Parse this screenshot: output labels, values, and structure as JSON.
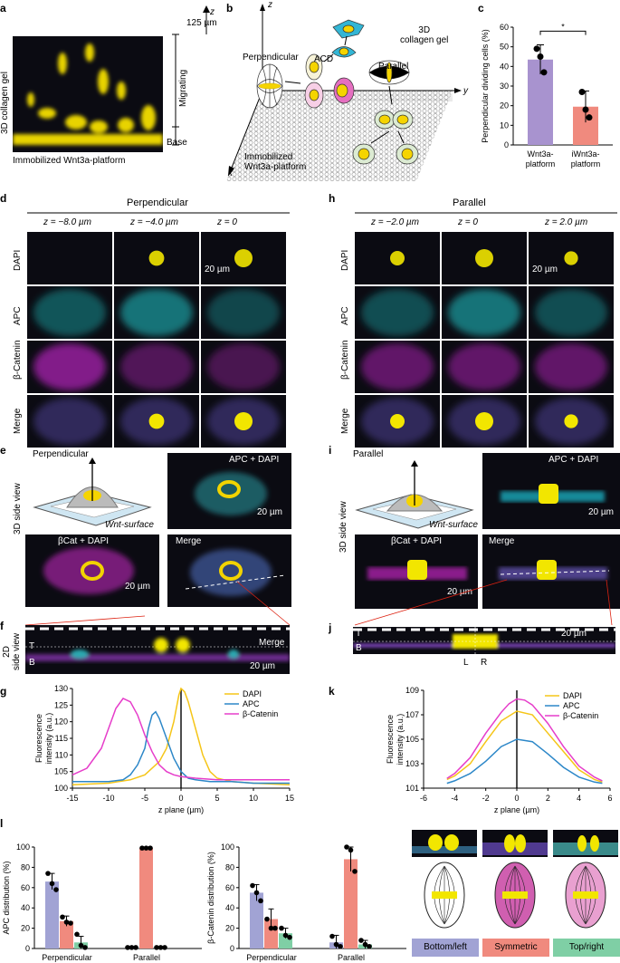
{
  "panels": {
    "a": {
      "label": "a",
      "ylabel": "3D collagen gel",
      "xlabel": "Immobilized Wnt3a-platform",
      "z_label": "z",
      "z_value": "125 µm",
      "migrating": "Migrating",
      "base": "Base"
    },
    "b": {
      "label": "b",
      "perpendicular": "Perpendicular",
      "acd": "ACD",
      "parallel": "Parallel",
      "gel": "3D\ncollagen gel",
      "platform": "Immobilized\nWnt3a-platform",
      "z": "z",
      "y": "y",
      "x": "x"
    },
    "c": {
      "label": "c"
    },
    "d": {
      "label": "d",
      "title": "Perpendicular",
      "cols": [
        "z = −8.0 µm",
        "z = −4.0 µm",
        "z = 0"
      ],
      "rows": [
        "DAPI",
        "APC",
        "β-Catenin",
        "Merge"
      ],
      "scale": "20 µm"
    },
    "h": {
      "label": "h",
      "title": "Parallel",
      "cols": [
        "z = −2.0 µm",
        "z = 0",
        "z = 2.0 µm"
      ],
      "rows": [
        "DAPI",
        "APC",
        "β-Catenin",
        "Merge"
      ],
      "scale": "20 µm"
    },
    "e": {
      "label": "e",
      "side": "3D side view",
      "title": "Perpendicular",
      "surface": "Wnt-surface",
      "apc_dapi": "APC + DAPI",
      "bcat_dapi": "βCat + DAPI",
      "merge": "Merge",
      "scale": "20 µm"
    },
    "i": {
      "label": "i",
      "side": "3D side view",
      "title": "Parallel",
      "surface": "Wnt-surface",
      "apc_dapi": "APC + DAPI",
      "bcat_dapi": "βCat + DAPI",
      "merge": "Merge",
      "scale": "20 µm"
    },
    "f": {
      "label": "f",
      "side": "2D\nside view",
      "merge": "Merge",
      "t": "T",
      "b": "B",
      "scale": "20 µm"
    },
    "j": {
      "label": "j",
      "t": "T",
      "b": "B",
      "l": "L",
      "r": "R",
      "scale": "20 µm"
    },
    "g": {
      "label": "g"
    },
    "k": {
      "label": "k"
    },
    "l": {
      "label": "l",
      "legend": [
        "Bottom/left",
        "Symmetric",
        "Top/right"
      ],
      "legend_colors": [
        "#a1a3d4",
        "#f08a7e",
        "#7fcfa5"
      ]
    }
  },
  "chart_data": [
    {
      "id": "c",
      "type": "bar",
      "categories": [
        "Wnt3a-\nplatform",
        "iWnt3a-\nplatform"
      ],
      "values": [
        43.5,
        19.5
      ],
      "errors": [
        7.5,
        8
      ],
      "points": [
        [
          49,
          45,
          37
        ],
        [
          27,
          18,
          14
        ]
      ],
      "colors": [
        "#a893cf",
        "#f08a7e"
      ],
      "ylabel": "Perpendicular dividing cells (%)",
      "ylim": [
        0,
        60
      ],
      "yticks": [
        0,
        10,
        20,
        30,
        40,
        50,
        60
      ],
      "significance": "*"
    },
    {
      "id": "g",
      "type": "line",
      "xlabel": "z plane (µm)",
      "ylabel": "Fluorescence\nintensity (a.u.)",
      "xlim": [
        -15,
        15
      ],
      "ylim": [
        100,
        130
      ],
      "xticks": [
        -15,
        -10,
        -5,
        0,
        5,
        10,
        15
      ],
      "yticks": [
        100,
        105,
        110,
        115,
        120,
        125,
        130
      ],
      "legend": "top-right",
      "series": [
        {
          "name": "DAPI",
          "color": "#f5c518",
          "x": [
            -15,
            -10,
            -7,
            -5,
            -3,
            -2,
            -1,
            -0.3,
            0,
            0.5,
            1,
            2,
            3,
            4,
            5,
            7,
            10,
            15
          ],
          "y": [
            101,
            101.5,
            102.5,
            104,
            108,
            112,
            120,
            128,
            130,
            129,
            126,
            118,
            110,
            105,
            103,
            102,
            101.5,
            101
          ]
        },
        {
          "name": "APC",
          "color": "#2c87c8",
          "x": [
            -15,
            -10,
            -8,
            -7,
            -6,
            -5,
            -4.5,
            -4,
            -3.5,
            -3,
            -2,
            -1,
            0,
            1,
            2,
            4,
            7,
            10,
            15
          ],
          "y": [
            102,
            102,
            102.5,
            104,
            107,
            112,
            118,
            122,
            123,
            121,
            115,
            109,
            105,
            103,
            102.5,
            102,
            102,
            101.5,
            101.5
          ]
        },
        {
          "name": "β-Catenin",
          "color": "#e63dca",
          "x": [
            -15,
            -13,
            -11,
            -10,
            -9,
            -8,
            -7,
            -6,
            -5,
            -4,
            -3,
            -2,
            -1,
            0,
            2,
            5,
            10,
            15
          ],
          "y": [
            104,
            106,
            112,
            118,
            124,
            127,
            126,
            122,
            116,
            111,
            107,
            105,
            104,
            103.5,
            103,
            102.5,
            102.5,
            102.5
          ]
        }
      ]
    },
    {
      "id": "k",
      "type": "line",
      "xlabel": "z plane (µm)",
      "ylabel": "Fluorescence\nintensity (a.u.)",
      "xlim": [
        -6,
        6
      ],
      "ylim": [
        101,
        109
      ],
      "xticks": [
        -6,
        -4,
        -2,
        0,
        2,
        4,
        6
      ],
      "yticks": [
        101,
        103,
        105,
        107,
        109
      ],
      "legend": "top-right",
      "series": [
        {
          "name": "DAPI",
          "color": "#f5c518",
          "x": [
            -4.5,
            -4,
            -3,
            -2,
            -1,
            0,
            1,
            2,
            3,
            4,
            5,
            5.5
          ],
          "y": [
            101.7,
            102,
            103,
            104.8,
            106.5,
            107.3,
            107,
            105.5,
            104,
            102.5,
            101.7,
            101.5
          ]
        },
        {
          "name": "APC",
          "color": "#2c87c8",
          "x": [
            -4.5,
            -4,
            -3,
            -2,
            -1,
            0,
            1,
            2,
            3,
            4,
            5,
            5.5
          ],
          "y": [
            101.4,
            101.6,
            102.2,
            103.2,
            104.4,
            105,
            104.8,
            103.8,
            102.7,
            101.9,
            101.5,
            101.4
          ]
        },
        {
          "name": "β-Catenin",
          "color": "#e63dca",
          "x": [
            -4.5,
            -4,
            -3,
            -2,
            -1,
            -0.5,
            0,
            0.5,
            1,
            2,
            3,
            4,
            5,
            5.5
          ],
          "y": [
            101.8,
            102.2,
            103.5,
            105.5,
            107.2,
            107.9,
            108.3,
            108.2,
            107.8,
            106.3,
            104.4,
            102.8,
            101.9,
            101.6
          ]
        }
      ]
    },
    {
      "id": "l-apc",
      "type": "bar",
      "groups": [
        "Perpendicular",
        "Parallel"
      ],
      "series": [
        {
          "name": "Bottom/left",
          "values": [
            66,
            0
          ],
          "errors": [
            8,
            0
          ],
          "points": [
            [
              74,
              64,
              58
            ],
            [
              1,
              1,
              1
            ]
          ]
        },
        {
          "name": "Symmetric",
          "values": [
            27,
            99
          ],
          "errors": [
            5,
            1
          ],
          "points": [
            [
              31,
              26,
              25
            ],
            [
              99,
              99,
              99
            ]
          ]
        },
        {
          "name": "Top/right",
          "values": [
            6,
            0
          ],
          "errors": [
            6,
            0
          ],
          "points": [
            [
              14,
              3,
              1
            ],
            [
              1,
              1,
              1
            ]
          ]
        }
      ],
      "ylabel": "APC distribution (%)",
      "ylim": [
        0,
        100
      ],
      "yticks": [
        0,
        20,
        40,
        60,
        80,
        100
      ]
    },
    {
      "id": "l-bcat",
      "type": "bar",
      "groups": [
        "Perpendicular",
        "Parallel"
      ],
      "series": [
        {
          "name": "Bottom/left",
          "values": [
            55,
            6
          ],
          "errors": [
            8,
            7
          ],
          "points": [
            [
              62,
              55,
              47
            ],
            [
              12,
              4,
              2
            ]
          ]
        },
        {
          "name": "Symmetric",
          "values": [
            29,
            88
          ],
          "errors": [
            10,
            12
          ],
          "points": [
            [
              29,
              20,
              20
            ],
            [
              100,
              97,
              76
            ]
          ]
        },
        {
          "name": "Top/right",
          "values": [
            15,
            4
          ],
          "errors": [
            5,
            4
          ],
          "points": [
            [
              20,
              13,
              11
            ],
            [
              8,
              4,
              2
            ]
          ]
        }
      ],
      "ylabel": "β-Catenin distribution (%)",
      "ylim": [
        0,
        100
      ],
      "yticks": [
        0,
        20,
        40,
        60,
        80,
        100
      ]
    }
  ]
}
